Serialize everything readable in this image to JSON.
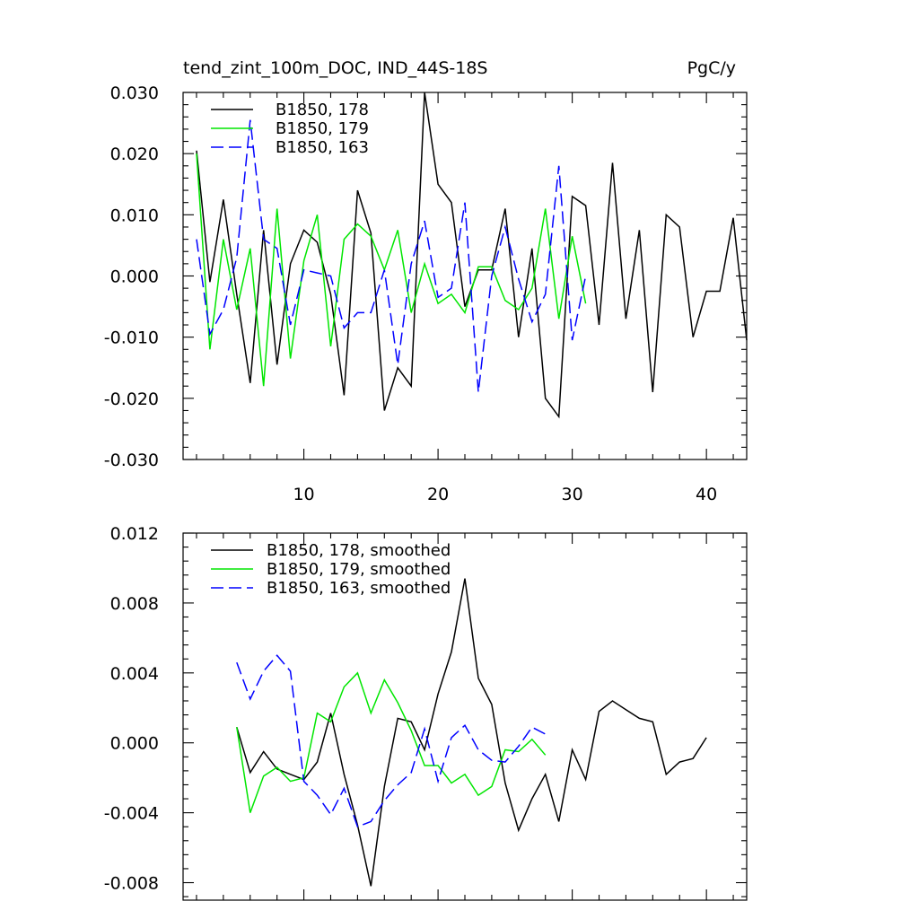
{
  "chart_data": [
    {
      "type": "line",
      "title": "tend_zint_100m_DOC, IND_44S-18S",
      "units": "PgC/y",
      "xlim": [
        1,
        43
      ],
      "ylim": [
        -0.03,
        0.03
      ],
      "x_ticks": [
        10,
        20,
        30,
        40
      ],
      "x_tick_labels": [
        "10",
        "20",
        "30",
        "40"
      ],
      "y_ticks": [
        -0.03,
        -0.02,
        -0.01,
        0.0,
        0.01,
        0.02,
        0.03
      ],
      "y_tick_labels": [
        "-0.030",
        "-0.020",
        "-0.010",
        "0.000",
        "0.010",
        "0.020",
        "0.030"
      ],
      "legend_position": "top-left",
      "series": [
        {
          "name": "B1850, 178",
          "color": "#000000",
          "dash": "solid",
          "x_start": 2,
          "values": [
            0.0205,
            -0.001,
            0.0125,
            -0.003,
            -0.0175,
            0.0075,
            -0.0145,
            0.002,
            0.0075,
            0.0055,
            -0.003,
            -0.0195,
            0.014,
            0.007,
            -0.022,
            -0.015,
            -0.018,
            0.03,
            0.015,
            0.012,
            -0.005,
            0.001,
            0.001,
            0.011,
            -0.01,
            0.0045,
            -0.02,
            -0.023,
            0.013,
            0.0115,
            -0.008,
            0.0185,
            -0.007,
            0.0075,
            -0.019,
            0.01,
            0.008,
            -0.01,
            -0.0025,
            -0.0025,
            0.0095,
            -0.0105
          ]
        },
        {
          "name": "B1850, 179",
          "color": "#00e600",
          "dash": "solid",
          "x_start": 2,
          "values": [
            0.02,
            -0.012,
            0.006,
            -0.0055,
            0.0045,
            -0.018,
            0.011,
            -0.0135,
            0.0025,
            0.01,
            -0.0115,
            0.006,
            0.0085,
            0.0065,
            0.001,
            0.0075,
            -0.006,
            0.002,
            -0.0045,
            -0.003,
            -0.006,
            0.0015,
            0.0015,
            -0.004,
            -0.0055,
            -0.002,
            0.011,
            -0.007,
            0.0065,
            -0.0045
          ]
        },
        {
          "name": "B1850, 163",
          "color": "#0000ff",
          "dash": "dashed",
          "x_start": 2,
          "values": [
            0.006,
            -0.0095,
            -0.0055,
            0.003,
            0.0255,
            0.006,
            0.0045,
            -0.008,
            0.001,
            0.0005,
            0.0,
            -0.0085,
            -0.006,
            -0.006,
            0.001,
            -0.0145,
            0.002,
            0.009,
            -0.0035,
            -0.002,
            0.012,
            -0.019,
            0.0,
            0.008,
            -0.0005,
            -0.0075,
            -0.003,
            0.018,
            -0.0105,
            0.0
          ]
        }
      ]
    },
    {
      "type": "line",
      "xlim": [
        1,
        43
      ],
      "ylim": [
        -0.009,
        0.012
      ],
      "x_ticks": [
        10,
        20,
        30,
        40
      ],
      "y_ticks": [
        -0.008,
        -0.004,
        0.0,
        0.004,
        0.008,
        0.012
      ],
      "y_tick_labels": [
        "-0.008",
        "-0.004",
        "0.000",
        "0.004",
        "0.008",
        "0.012"
      ],
      "legend_position": "top-left",
      "series": [
        {
          "name": "B1850, 178, smoothed",
          "color": "#000000",
          "dash": "solid",
          "x_start": 5,
          "values": [
            0.0009,
            -0.0017,
            -0.0005,
            -0.0015,
            -0.0018,
            -0.0021,
            -0.0011,
            0.0017,
            -0.0018,
            -0.0047,
            -0.0082,
            -0.0025,
            0.0014,
            0.0012,
            -0.0004,
            0.0028,
            0.0052,
            0.0094,
            0.0037,
            0.0022,
            -0.0023,
            -0.005,
            -0.0032,
            -0.0018,
            -0.0045,
            -0.0004,
            -0.0021,
            0.0018,
            0.0024,
            0.0019,
            0.0014,
            0.0012,
            -0.0018,
            -0.0011,
            -0.0009,
            0.0003
          ]
        },
        {
          "name": "B1850, 179, smoothed",
          "color": "#00e600",
          "dash": "solid",
          "x_start": 5,
          "values": [
            0.0009,
            -0.004,
            -0.0019,
            -0.0014,
            -0.0022,
            -0.002,
            0.0017,
            0.0012,
            0.0032,
            0.004,
            0.0017,
            0.0036,
            0.0023,
            0.0007,
            -0.0013,
            -0.0013,
            -0.0023,
            -0.0018,
            -0.003,
            -0.0025,
            -0.0004,
            -0.0005,
            0.0002,
            -0.0007
          ]
        },
        {
          "name": "B1850, 163, smoothed",
          "color": "#0000ff",
          "dash": "dashed",
          "x_start": 5,
          "values": [
            0.0046,
            0.0025,
            0.0041,
            0.005,
            0.0041,
            -0.0022,
            -0.003,
            -0.0041,
            -0.0026,
            -0.0048,
            -0.0045,
            -0.0033,
            -0.0024,
            -0.0017,
            0.0008,
            -0.0022,
            0.0003,
            0.001,
            -0.0004,
            -0.001,
            -0.0011,
            -0.0002,
            0.0009,
            0.0005
          ]
        }
      ]
    }
  ]
}
